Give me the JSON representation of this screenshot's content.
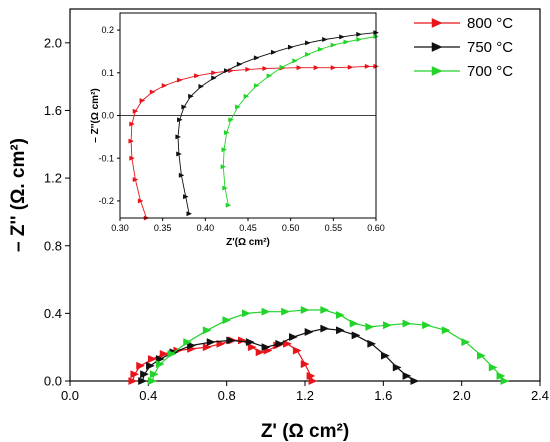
{
  "chart_data": [
    {
      "type": "scatter",
      "role": "main",
      "xlabel": "Z' (Ω cm²)",
      "ylabel": "– Z'' (Ω. cm²)",
      "xlim": [
        0.0,
        2.4
      ],
      "ylim": [
        0.0,
        2.2
      ],
      "x_ticks": [
        "0.0",
        "0.4",
        "0.8",
        "1.2",
        "1.6",
        "2.0",
        "2.4"
      ],
      "y_ticks": [
        "0.0",
        "0.4",
        "0.8",
        "1.2",
        "1.6",
        "2.0"
      ],
      "x_tick_values": [
        0.0,
        0.4,
        0.8,
        1.2,
        1.6,
        2.0,
        2.4
      ],
      "y_tick_values": [
        0.0,
        0.4,
        0.8,
        1.2,
        1.6,
        2.0
      ],
      "legend": "top-right",
      "series": [
        {
          "name": "800 °C",
          "color": "#e8141a",
          "points": [
            [
              0.32,
              -0.02
            ],
            [
              0.33,
              0.04
            ],
            [
              0.36,
              0.09
            ],
            [
              0.42,
              0.13
            ],
            [
              0.48,
              0.16
            ],
            [
              0.55,
              0.18
            ],
            [
              0.62,
              0.19
            ],
            [
              0.7,
              0.2
            ],
            [
              0.77,
              0.22
            ],
            [
              0.83,
              0.24
            ],
            [
              0.88,
              0.24
            ],
            [
              0.93,
              0.2
            ],
            [
              0.97,
              0.17
            ],
            [
              1.01,
              0.18
            ],
            [
              1.06,
              0.21
            ],
            [
              1.11,
              0.22
            ],
            [
              1.16,
              0.18
            ],
            [
              1.2,
              0.1
            ],
            [
              1.23,
              0.03
            ],
            [
              1.24,
              0.0
            ]
          ]
        },
        {
          "name": "750 °C",
          "color": "#111111",
          "points": [
            [
              0.37,
              -0.01
            ],
            [
              0.38,
              0.04
            ],
            [
              0.41,
              0.09
            ],
            [
              0.46,
              0.13
            ],
            [
              0.53,
              0.17
            ],
            [
              0.62,
              0.21
            ],
            [
              0.72,
              0.23
            ],
            [
              0.82,
              0.24
            ],
            [
              0.92,
              0.23
            ],
            [
              1.0,
              0.2
            ],
            [
              1.07,
              0.22
            ],
            [
              1.14,
              0.26
            ],
            [
              1.22,
              0.29
            ],
            [
              1.3,
              0.31
            ],
            [
              1.38,
              0.3
            ],
            [
              1.46,
              0.27
            ],
            [
              1.54,
              0.22
            ],
            [
              1.61,
              0.15
            ],
            [
              1.67,
              0.08
            ],
            [
              1.72,
              0.03
            ],
            [
              1.76,
              0.0
            ]
          ]
        },
        {
          "name": "700 °C",
          "color": "#22d42a",
          "points": [
            [
              0.42,
              -0.01
            ],
            [
              0.43,
              0.04
            ],
            [
              0.46,
              0.1
            ],
            [
              0.52,
              0.16
            ],
            [
              0.6,
              0.23
            ],
            [
              0.7,
              0.3
            ],
            [
              0.8,
              0.36
            ],
            [
              0.9,
              0.4
            ],
            [
              1.0,
              0.41
            ],
            [
              1.1,
              0.41
            ],
            [
              1.2,
              0.42
            ],
            [
              1.3,
              0.42
            ],
            [
              1.38,
              0.39
            ],
            [
              1.45,
              0.34
            ],
            [
              1.53,
              0.32
            ],
            [
              1.62,
              0.33
            ],
            [
              1.72,
              0.34
            ],
            [
              1.82,
              0.33
            ],
            [
              1.92,
              0.3
            ],
            [
              2.02,
              0.23
            ],
            [
              2.1,
              0.15
            ],
            [
              2.16,
              0.08
            ],
            [
              2.2,
              0.03
            ],
            [
              2.22,
              0.0
            ]
          ]
        }
      ]
    },
    {
      "type": "scatter",
      "role": "inset",
      "xlabel": "Z'(Ω cm²)",
      "ylabel": "– Z''(Ω cm²)",
      "xlim": [
        0.3,
        0.6
      ],
      "ylim": [
        -0.24,
        0.24
      ],
      "x_ticks": [
        "0.30",
        "0.35",
        "0.40",
        "0.45",
        "0.50",
        "0.55",
        "0.60"
      ],
      "y_ticks": [
        "-0.2",
        "-0.1",
        "0.0",
        "0.1",
        "0.2"
      ],
      "x_tick_values": [
        0.3,
        0.35,
        0.4,
        0.45,
        0.5,
        0.55,
        0.6
      ],
      "y_tick_values": [
        -0.2,
        -0.1,
        0.0,
        0.1,
        0.2
      ],
      "zero_line": true,
      "series": [
        {
          "name": "800 °C",
          "color": "#e8141a",
          "points": [
            [
              0.331,
              -0.24
            ],
            [
              0.324,
              -0.2
            ],
            [
              0.318,
              -0.15
            ],
            [
              0.314,
              -0.1
            ],
            [
              0.313,
              -0.06
            ],
            [
              0.314,
              -0.02
            ],
            [
              0.318,
              0.01
            ],
            [
              0.326,
              0.035
            ],
            [
              0.338,
              0.055
            ],
            [
              0.352,
              0.07
            ],
            [
              0.37,
              0.083
            ],
            [
              0.39,
              0.093
            ],
            [
              0.41,
              0.1
            ],
            [
              0.43,
              0.105
            ],
            [
              0.45,
              0.108
            ],
            [
              0.47,
              0.11
            ],
            [
              0.49,
              0.111
            ],
            [
              0.51,
              0.112
            ],
            [
              0.53,
              0.112
            ],
            [
              0.55,
              0.112
            ],
            [
              0.57,
              0.113
            ],
            [
              0.59,
              0.115
            ],
            [
              0.6,
              0.115
            ]
          ]
        },
        {
          "name": "750 °C",
          "color": "#111111",
          "points": [
            [
              0.381,
              -0.23
            ],
            [
              0.377,
              -0.19
            ],
            [
              0.372,
              -0.14
            ],
            [
              0.369,
              -0.09
            ],
            [
              0.368,
              -0.05
            ],
            [
              0.37,
              -0.01
            ],
            [
              0.375,
              0.02
            ],
            [
              0.383,
              0.045
            ],
            [
              0.395,
              0.068
            ],
            [
              0.41,
              0.088
            ],
            [
              0.425,
              0.105
            ],
            [
              0.44,
              0.12
            ],
            [
              0.46,
              0.135
            ],
            [
              0.48,
              0.148
            ],
            [
              0.5,
              0.16
            ],
            [
              0.52,
              0.17
            ],
            [
              0.54,
              0.178
            ],
            [
              0.56,
              0.184
            ],
            [
              0.58,
              0.19
            ],
            [
              0.6,
              0.194
            ]
          ]
        },
        {
          "name": "700 °C",
          "color": "#22d42a",
          "points": [
            [
              0.427,
              -0.21
            ],
            [
              0.423,
              -0.17
            ],
            [
              0.421,
              -0.12
            ],
            [
              0.422,
              -0.08
            ],
            [
              0.425,
              -0.04
            ],
            [
              0.43,
              -0.01
            ],
            [
              0.438,
              0.02
            ],
            [
              0.448,
              0.045
            ],
            [
              0.46,
              0.07
            ],
            [
              0.475,
              0.093
            ],
            [
              0.49,
              0.113
            ],
            [
              0.505,
              0.128
            ],
            [
              0.52,
              0.143
            ],
            [
              0.535,
              0.155
            ],
            [
              0.55,
              0.165
            ],
            [
              0.565,
              0.172
            ],
            [
              0.58,
              0.178
            ],
            [
              0.6,
              0.185
            ]
          ]
        }
      ]
    }
  ]
}
